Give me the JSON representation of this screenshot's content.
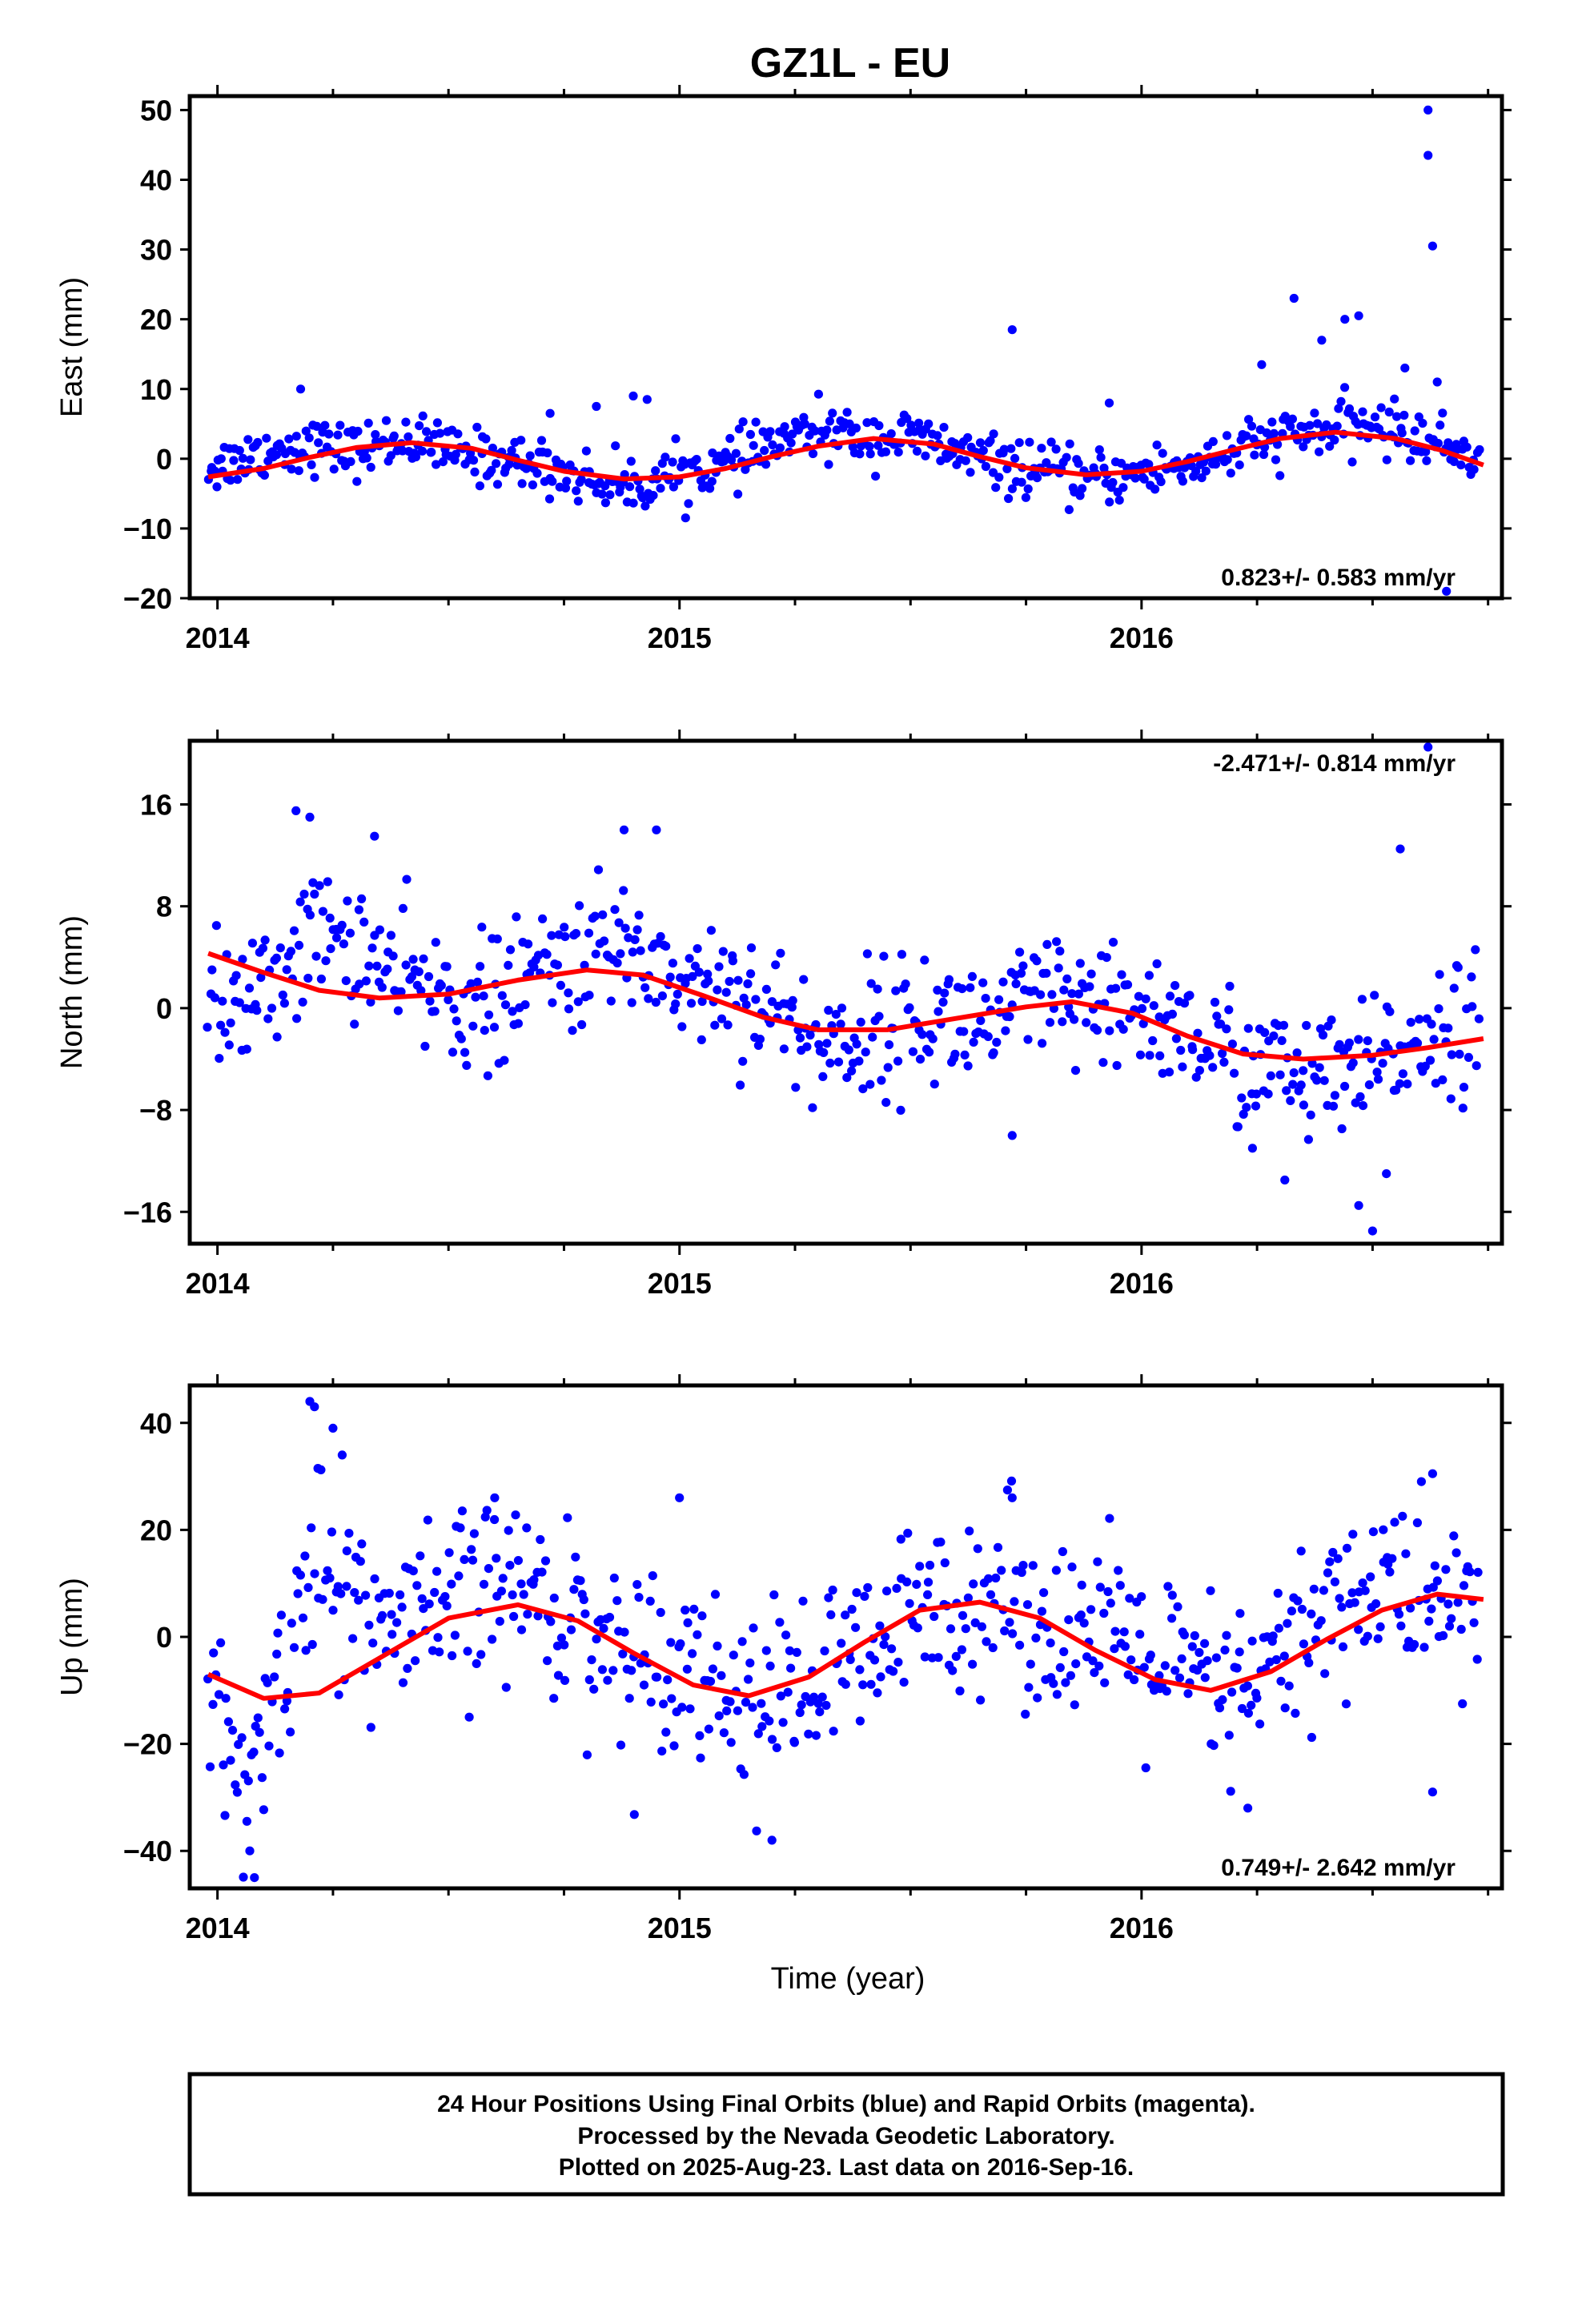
{
  "title": "GZ1L - EU",
  "xlabel": "Time (year)",
  "footer": {
    "line1": "24 Hour Positions Using Final Orbits (blue) and Rapid Orbits (magenta).",
    "line2": "Processed by the Nevada Geodetic Laboratory.",
    "line3": "Plotted on 2025-Aug-23. Last data on 2016-Sep-16."
  },
  "colors": {
    "points": "#0000ff",
    "model": "#ff0000",
    "frame": "#000000"
  },
  "chart_data": [
    {
      "type": "scatter",
      "component": "east",
      "ylabel": "East (mm)",
      "ylim": [
        -20,
        52
      ],
      "xlim": [
        2013.94,
        2016.78
      ],
      "yticks": [
        -20,
        -10,
        0,
        10,
        20,
        30,
        40,
        50
      ],
      "xticks": [
        2014,
        2015,
        2016
      ],
      "rate_text": "0.823+/- 0.583 mm/yr",
      "rate_position": "bottom-right",
      "series": [
        {
          "values": [
            [
              2014.0,
              -1
            ],
            [
              2014.1,
              1
            ],
            [
              2014.2,
              2
            ],
            [
              2014.3,
              1
            ],
            [
              2014.4,
              3
            ],
            [
              2014.5,
              1
            ],
            [
              2014.6,
              0
            ],
            [
              2014.7,
              -1
            ],
            [
              2014.8,
              -3
            ],
            [
              2014.9,
              -4
            ],
            [
              2015.0,
              -2
            ],
            [
              2015.1,
              -1
            ],
            [
              2015.2,
              2
            ],
            [
              2015.3,
              4
            ],
            [
              2015.4,
              3
            ],
            [
              2015.5,
              3
            ],
            [
              2015.6,
              1
            ],
            [
              2015.7,
              -1
            ],
            [
              2015.8,
              -2
            ],
            [
              2015.9,
              -3
            ],
            [
              2016.0,
              -2
            ],
            [
              2016.1,
              -1
            ],
            [
              2016.2,
              1
            ],
            [
              2016.3,
              3
            ],
            [
              2016.4,
              4
            ],
            [
              2016.5,
              5
            ],
            [
              2016.6,
              3
            ],
            [
              2016.7,
              1
            ]
          ]
        },
        {
          "name": "",
          "model": [
            [
              2013.98,
              -2.6
            ],
            [
              2014.1,
              -1.4
            ],
            [
              2014.2,
              0.2
            ],
            [
              2014.3,
              1.6
            ],
            [
              2014.42,
              2.3
            ],
            [
              2014.55,
              1.5
            ],
            [
              2014.65,
              -0.2
            ],
            [
              2014.75,
              -1.8
            ],
            [
              2014.88,
              -2.9
            ],
            [
              2015.0,
              -2.6
            ],
            [
              2015.1,
              -1.4
            ],
            [
              2015.2,
              0.3
            ],
            [
              2015.3,
              1.8
            ],
            [
              2015.42,
              2.9
            ],
            [
              2015.55,
              2.1
            ],
            [
              2015.65,
              0.3
            ],
            [
              2015.75,
              -1.3
            ],
            [
              2015.88,
              -2.3
            ],
            [
              2016.0,
              -1.8
            ],
            [
              2016.1,
              -0.4
            ],
            [
              2016.2,
              1.3
            ],
            [
              2016.3,
              2.9
            ],
            [
              2016.42,
              3.8
            ],
            [
              2016.55,
              2.9
            ],
            [
              2016.65,
              1.2
            ],
            [
              2016.74,
              -0.9
            ]
          ]
        }
      ],
      "outliers": [
        [
          2014.18,
          10
        ],
        [
          2014.72,
          6.5
        ],
        [
          2014.82,
          7.5
        ],
        [
          2014.9,
          9
        ],
        [
          2014.93,
          8.5
        ],
        [
          2015.72,
          18.5
        ],
        [
          2015.93,
          8
        ],
        [
          2016.26,
          13.5
        ],
        [
          2016.33,
          23
        ],
        [
          2016.39,
          17
        ],
        [
          2016.44,
          20
        ],
        [
          2016.47,
          20.5
        ],
        [
          2016.57,
          13
        ],
        [
          2016.63,
          30.5
        ],
        [
          2016.62,
          43.5
        ],
        [
          2016.62,
          50
        ],
        [
          2016.64,
          11
        ],
        [
          2016.66,
          -19
        ]
      ]
    },
    {
      "type": "scatter",
      "component": "north",
      "ylabel": "North (mm)",
      "ylim": [
        -18.5,
        21
      ],
      "xlim": [
        2013.94,
        2016.78
      ],
      "yticks": [
        -16,
        -8,
        0,
        8,
        16
      ],
      "xticks": [
        2014,
        2015,
        2016
      ],
      "rate_text": "-2.471+/- 0.814 mm/yr",
      "rate_position": "top-right",
      "series": [
        {
          "values": [
            [
              2014.0,
              0
            ],
            [
              2014.1,
              1
            ],
            [
              2014.2,
              6
            ],
            [
              2014.3,
              5
            ],
            [
              2014.4,
              2
            ],
            [
              2014.5,
              1
            ],
            [
              2014.6,
              0
            ],
            [
              2014.7,
              3
            ],
            [
              2014.8,
              4
            ],
            [
              2014.9,
              5
            ],
            [
              2015.0,
              2
            ],
            [
              2015.1,
              2
            ],
            [
              2015.2,
              0
            ],
            [
              2015.3,
              -3
            ],
            [
              2015.4,
              -2
            ],
            [
              2015.5,
              -1
            ],
            [
              2015.6,
              -1
            ],
            [
              2015.7,
              -1
            ],
            [
              2015.8,
              1
            ],
            [
              2015.9,
              -1
            ],
            [
              2016.0,
              0
            ],
            [
              2016.1,
              -2
            ],
            [
              2016.2,
              -4
            ],
            [
              2016.3,
              -5
            ],
            [
              2016.4,
              -6
            ],
            [
              2016.5,
              -5
            ],
            [
              2016.6,
              -2
            ],
            [
              2016.7,
              -1
            ]
          ]
        },
        {
          "name": "",
          "model": [
            [
              2013.98,
              4.3
            ],
            [
              2014.1,
              2.8
            ],
            [
              2014.22,
              1.4
            ],
            [
              2014.35,
              0.8
            ],
            [
              2014.5,
              1.1
            ],
            [
              2014.65,
              2.2
            ],
            [
              2014.8,
              3.0
            ],
            [
              2014.92,
              2.6
            ],
            [
              2015.05,
              1.0
            ],
            [
              2015.18,
              -0.7
            ],
            [
              2015.3,
              -1.7
            ],
            [
              2015.45,
              -1.7
            ],
            [
              2015.6,
              -0.8
            ],
            [
              2015.75,
              0.1
            ],
            [
              2015.85,
              0.5
            ],
            [
              2015.98,
              -0.4
            ],
            [
              2016.1,
              -2.2
            ],
            [
              2016.22,
              -3.6
            ],
            [
              2016.35,
              -4.0
            ],
            [
              2016.5,
              -3.7
            ],
            [
              2016.62,
              -3.1
            ],
            [
              2016.74,
              -2.4
            ]
          ]
        }
      ],
      "outliers": [
        [
          2014.17,
          15.5
        ],
        [
          2014.2,
          15
        ],
        [
          2014.34,
          13.5
        ],
        [
          2014.88,
          14
        ],
        [
          2014.95,
          14
        ],
        [
          2015.72,
          -10
        ],
        [
          2016.24,
          -11
        ],
        [
          2016.31,
          -13.5
        ],
        [
          2016.5,
          -17.5
        ],
        [
          2016.47,
          -15.5
        ],
        [
          2016.53,
          -13
        ],
        [
          2016.56,
          12.5
        ],
        [
          2016.62,
          20.5
        ]
      ]
    },
    {
      "type": "scatter",
      "component": "up",
      "ylabel": "Up (mm)",
      "ylim": [
        -47,
        47
      ],
      "xlim": [
        2013.94,
        2016.78
      ],
      "yticks": [
        -40,
        -20,
        0,
        20,
        40
      ],
      "xticks": [
        2014,
        2015,
        2016
      ],
      "rate_text": "0.749+/- 2.642 mm/yr",
      "rate_position": "bottom-right",
      "series": [
        {
          "values": [
            [
              2014.0,
              -15
            ],
            [
              2014.05,
              -30
            ],
            [
              2014.1,
              -20
            ],
            [
              2014.2,
              15
            ],
            [
              2014.3,
              5
            ],
            [
              2014.4,
              0
            ],
            [
              2014.5,
              5
            ],
            [
              2014.6,
              10
            ],
            [
              2014.7,
              8
            ],
            [
              2014.8,
              2
            ],
            [
              2014.9,
              -5
            ],
            [
              2015.0,
              -2
            ],
            [
              2015.1,
              -10
            ],
            [
              2015.2,
              -12
            ],
            [
              2015.3,
              -8
            ],
            [
              2015.4,
              -5
            ],
            [
              2015.5,
              3
            ],
            [
              2015.6,
              8
            ],
            [
              2015.7,
              8
            ],
            [
              2015.8,
              3
            ],
            [
              2015.9,
              0
            ],
            [
              2016.0,
              -3
            ],
            [
              2016.1,
              -8
            ],
            [
              2016.2,
              -12
            ],
            [
              2016.3,
              -5
            ],
            [
              2016.4,
              5
            ],
            [
              2016.5,
              10
            ],
            [
              2016.6,
              8
            ],
            [
              2016.7,
              5
            ]
          ]
        },
        {
          "name": "",
          "model": [
            [
              2013.98,
              -7
            ],
            [
              2014.1,
              -11.5
            ],
            [
              2014.22,
              -10.5
            ],
            [
              2014.35,
              -4
            ],
            [
              2014.5,
              3.5
            ],
            [
              2014.65,
              6
            ],
            [
              2014.78,
              3
            ],
            [
              2014.9,
              -3
            ],
            [
              2015.03,
              -9
            ],
            [
              2015.15,
              -11
            ],
            [
              2015.28,
              -7.5
            ],
            [
              2015.4,
              -1
            ],
            [
              2015.52,
              5
            ],
            [
              2015.65,
              6.5
            ],
            [
              2015.78,
              3.5
            ],
            [
              2015.9,
              -2.5
            ],
            [
              2016.03,
              -8
            ],
            [
              2016.15,
              -10
            ],
            [
              2016.28,
              -6.5
            ],
            [
              2016.4,
              -0.5
            ],
            [
              2016.52,
              5
            ],
            [
              2016.64,
              8
            ],
            [
              2016.74,
              7
            ]
          ]
        }
      ],
      "outliers": [
        [
          2014.2,
          44
        ],
        [
          2014.21,
          43
        ],
        [
          2014.25,
          39
        ],
        [
          2014.27,
          34
        ],
        [
          2014.08,
          -45
        ],
        [
          2014.07,
          -40
        ],
        [
          2015.0,
          26
        ],
        [
          2015.2,
          -38
        ],
        [
          2016.23,
          -32
        ],
        [
          2016.63,
          30.5
        ],
        [
          2016.63,
          -29
        ],
        [
          2014.6,
          26
        ],
        [
          2015.72,
          26
        ]
      ]
    }
  ]
}
